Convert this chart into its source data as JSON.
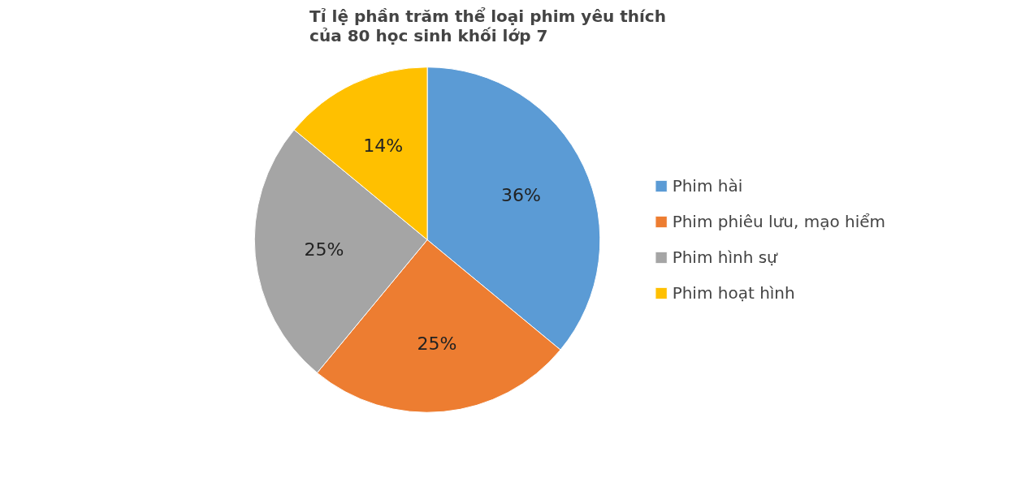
{
  "chart_data": {
    "type": "pie",
    "title": "Tỉ lệ phần trăm thể loại phim yêu thích\ncủa 80 học sinh khối lớp 7",
    "categories": [
      "Phim hài",
      "Phim phiêu lưu, mạo hiểm",
      "Phim hình sự",
      "Phim hoạt hình"
    ],
    "values": [
      36,
      25,
      25,
      14
    ],
    "colors": [
      "#5b9bd5",
      "#ed7d31",
      "#a5a5a5",
      "#ffc000"
    ],
    "value_labels": [
      "36%",
      "25%",
      "25%",
      "14%"
    ],
    "legend": "right"
  }
}
